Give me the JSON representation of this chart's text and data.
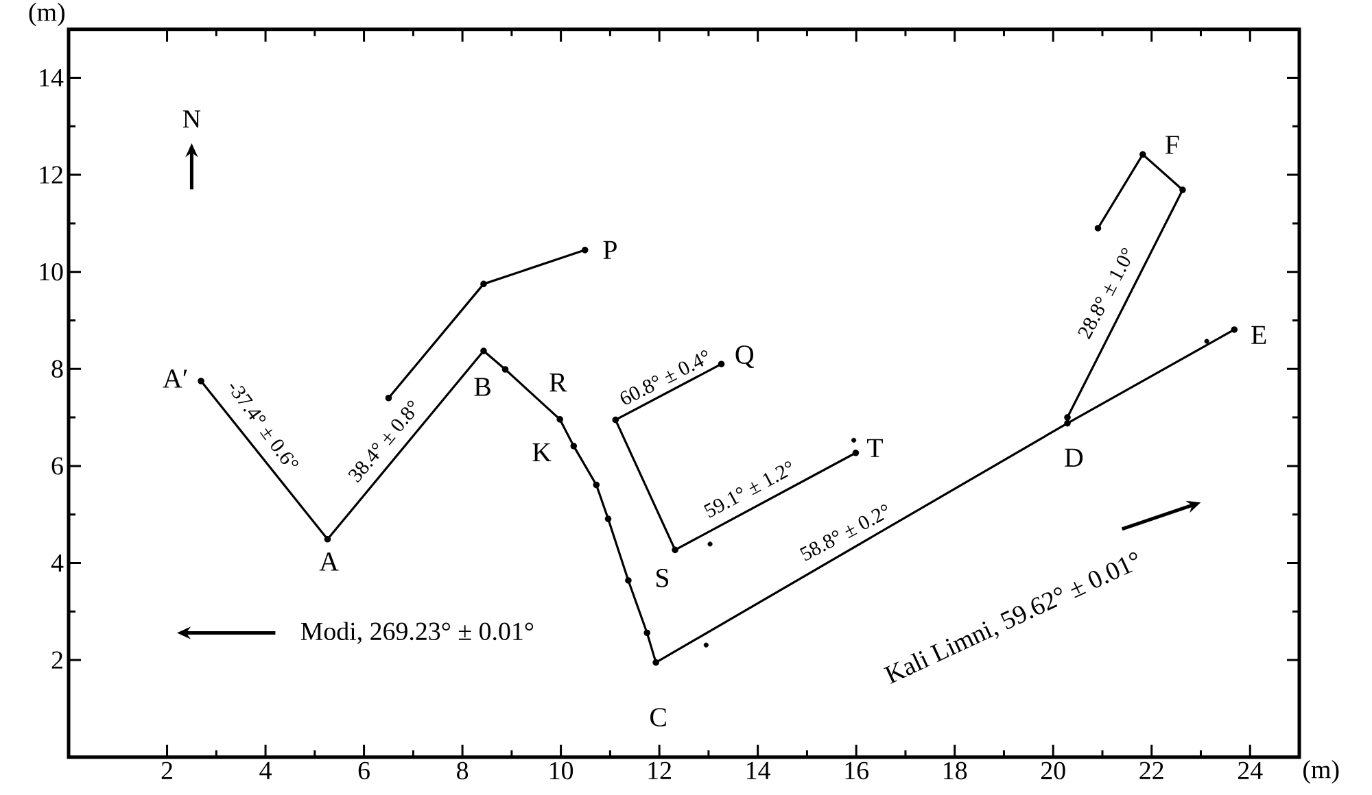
{
  "chart_data": {
    "type": "line",
    "xlabel": "(m)",
    "ylabel": "(m)",
    "xlim": [
      0,
      25
    ],
    "ylim": [
      0,
      15
    ],
    "xticks": [
      2,
      4,
      6,
      8,
      10,
      12,
      14,
      16,
      18,
      20,
      22,
      24
    ],
    "yticks": [
      2,
      4,
      6,
      8,
      10,
      12,
      14
    ],
    "marker": "circle",
    "line_style": "solid",
    "series": [
      {
        "color": "#000000",
        "x": [
          2.69,
          5.26,
          8.43,
          8.87,
          9.98,
          10.26,
          10.72,
          10.96,
          11.37,
          11.75,
          11.93,
          20.29,
          23.68
        ],
        "values": [
          7.75,
          4.49,
          8.37,
          7.99,
          6.96,
          6.41,
          5.61,
          4.91,
          3.64,
          2.56,
          1.95,
          6.88,
          8.81
        ]
      },
      {
        "color": "#000000",
        "x": [
          6.5,
          8.43,
          10.49
        ],
        "values": [
          7.4,
          9.75,
          10.45
        ]
      },
      {
        "color": "#000000",
        "x": [
          13.26,
          11.11,
          12.32,
          15.99
        ],
        "values": [
          8.1,
          6.95,
          4.27,
          6.27
        ]
      },
      {
        "color": "#000000",
        "x": [
          20.29,
          22.63,
          21.82,
          20.91
        ],
        "values": [
          7.0,
          11.69,
          12.42,
          10.9
        ]
      },
      {
        "type": "scatter",
        "color": "#000000",
        "x": [
          13.03,
          12.95,
          15.95,
          23.12
        ],
        "values": [
          4.39,
          2.31,
          6.53,
          8.57
        ]
      }
    ],
    "annotations": [
      "A′",
      "A",
      "B",
      "K",
      "R",
      "S",
      "C",
      "Q",
      "T",
      "P",
      "D",
      "E",
      "F",
      "-37.4° ± 0.6°",
      "38.4° ± 0.8°",
      "60.8° ± 0.4°",
      "59.1° ± 1.2°",
      "58.8° ± 0.2°",
      "28.8° ± 1.0°",
      "Modi, 269.23° ± 0.01°",
      "Kali Limni, 59.62° ± 0.01°",
      "N"
    ]
  }
}
